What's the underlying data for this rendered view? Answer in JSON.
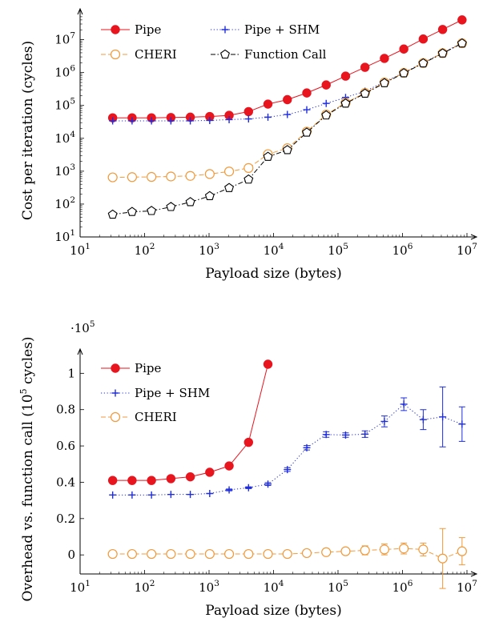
{
  "chart_data": [
    {
      "type": "line",
      "xlabel": "Payload size (bytes)",
      "ylabel": "Cost per iteration (cycles)",
      "xscale": "log",
      "yscale": "log",
      "xlim": [
        10,
        10000000
      ],
      "ylim": [
        10,
        30000000
      ],
      "x_ticks": [
        "10^1",
        "10^2",
        "10^3",
        "10^4",
        "10^5",
        "10^6",
        "10^7"
      ],
      "y_ticks": [
        "10^1",
        "10^2",
        "10^3",
        "10^4",
        "10^5",
        "10^6",
        "10^7"
      ],
      "legend_position": "top-left",
      "x": [
        32,
        64,
        128,
        256,
        512,
        1024,
        2048,
        4096,
        8192,
        16384,
        32768,
        65536,
        131072,
        262144,
        524288,
        1048576,
        2097152,
        4194304,
        8388608
      ],
      "series": [
        {
          "name": "Pipe",
          "color": "#e8141e",
          "marker": "filled-circle",
          "line": "solid",
          "values": [
            42000,
            42000,
            42000,
            43000,
            44000,
            46000,
            50000,
            65000,
            110000,
            150000,
            240000,
            420000,
            780000,
            1450000,
            2700000,
            5200000,
            10500000,
            20500000,
            40000000
          ]
        },
        {
          "name": "Pipe + SHM",
          "color": "#1f2ddb",
          "marker": "plus",
          "line": "dotted",
          "values": [
            34000,
            34000,
            34000,
            34000,
            34000,
            35000,
            37000,
            39000,
            44000,
            53000,
            74000,
            115000,
            175000,
            270000,
            520000,
            1000000,
            2000000,
            4000000,
            8000000
          ]
        },
        {
          "name": "CHERI",
          "color": "#f09a3c",
          "marker": "open-circle",
          "line": "dashed",
          "values": [
            650,
            660,
            670,
            690,
            720,
            820,
            980,
            1250,
            3300,
            5000,
            16000,
            53000,
            120000,
            240000,
            500000,
            980000,
            1950000,
            3900000,
            7800000
          ]
        },
        {
          "name": "Function Call",
          "color": "#000000",
          "marker": "open-pentagon",
          "line": "dash-dot",
          "values": [
            48,
            58,
            62,
            82,
            115,
            175,
            310,
            560,
            2750,
            4400,
            15000,
            50000,
            115000,
            230000,
            480000,
            960000,
            1920000,
            3850000,
            7750000
          ]
        }
      ]
    },
    {
      "type": "line",
      "xlabel": "Payload size (bytes)",
      "ylabel": "Overhead vs. function call (10^5 cycles)",
      "y_multiplier": "·10^5",
      "xscale": "log",
      "xlim": [
        10,
        10000000
      ],
      "ylim": [
        -0.105,
        1.05
      ],
      "x_ticks": [
        "10^1",
        "10^2",
        "10^3",
        "10^4",
        "10^5",
        "10^6",
        "10^7"
      ],
      "y_ticks": [
        "0",
        "0.2",
        "0.4",
        "0.6",
        "0.8",
        "1"
      ],
      "legend_position": "top-left",
      "x": [
        32,
        64,
        128,
        256,
        512,
        1024,
        2048,
        4096,
        8192,
        16384,
        32768,
        65536,
        131072,
        262144,
        524288,
        1048576,
        2097152,
        4194304,
        8388608
      ],
      "series": [
        {
          "name": "Pipe",
          "color": "#e8141e",
          "marker": "filled-circle",
          "line": "solid",
          "values": [
            0.41,
            0.41,
            0.41,
            0.42,
            0.43,
            0.455,
            0.49,
            0.62,
            1.05,
            null,
            null,
            null,
            null,
            null,
            null,
            null,
            null,
            null,
            null
          ],
          "errors": []
        },
        {
          "name": "Pipe + SHM",
          "color": "#1f2ddb",
          "marker": "plus",
          "line": "dotted",
          "values": [
            0.33,
            0.33,
            0.33,
            0.333,
            0.333,
            0.338,
            0.358,
            0.37,
            0.39,
            0.47,
            0.59,
            0.663,
            0.66,
            0.665,
            0.735,
            0.83,
            0.745,
            0.76,
            0.72
          ],
          "errors": [
            0,
            0,
            0,
            0,
            0,
            0,
            0.005,
            0.005,
            0.008,
            0.01,
            0.012,
            0.015,
            0.012,
            0.018,
            0.03,
            0.035,
            0.055,
            0.165,
            0.095
          ]
        },
        {
          "name": "CHERI",
          "color": "#f09a3c",
          "marker": "open-circle",
          "line": "dashed",
          "values": [
            0.005,
            0.005,
            0.005,
            0.005,
            0.005,
            0.005,
            0.005,
            0.005,
            0.005,
            0.005,
            0.01,
            0.015,
            0.02,
            0.025,
            0.03,
            0.035,
            0.03,
            -0.02,
            0.02
          ],
          "errors": [
            0,
            0,
            0,
            0,
            0,
            0,
            0,
            0,
            0.003,
            0.004,
            0.006,
            0.01,
            0.012,
            0.025,
            0.03,
            0.03,
            0.035,
            0.165,
            0.075
          ]
        }
      ]
    }
  ]
}
